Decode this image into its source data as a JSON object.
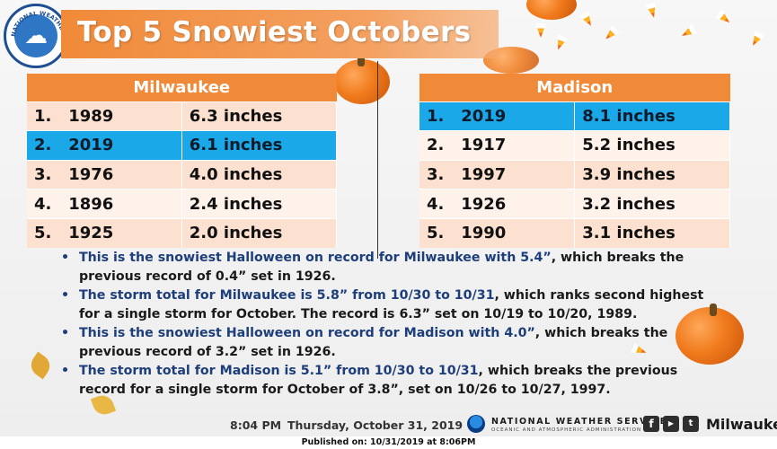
{
  "title": "Top 5 Snowiest Octobers",
  "logo": {
    "icon": "nws-logo-icon",
    "text": "NATIONAL WEATHER SERVICE"
  },
  "milwaukee": {
    "header": "Milwaukee",
    "rows": [
      {
        "rank": "1.",
        "year": "1989",
        "amount": "6.3 inches"
      },
      {
        "rank": "2.",
        "year": "2019",
        "amount": "6.1 inches"
      },
      {
        "rank": "3.",
        "year": "1976",
        "amount": "4.0 inches"
      },
      {
        "rank": "4.",
        "year": "1896",
        "amount": "2.4 inches"
      },
      {
        "rank": "5.",
        "year": "1925",
        "amount": "2.0 inches"
      }
    ]
  },
  "madison": {
    "header": "Madison",
    "rows": [
      {
        "rank": "1.",
        "year": "2019",
        "amount": "8.1 inches"
      },
      {
        "rank": "2.",
        "year": "1917",
        "amount": "5.2 inches"
      },
      {
        "rank": "3.",
        "year": "1997",
        "amount": "3.9 inches"
      },
      {
        "rank": "4.",
        "year": "1926",
        "amount": "3.2 inches"
      },
      {
        "rank": "5.",
        "year": "1990",
        "amount": "3.1 inches"
      }
    ]
  },
  "notes": [
    {
      "highlight": "This is the snowiest Halloween on record for Milwaukee with 5.4”",
      "rest": ", which breaks the previous record of 0.4” set in 1926."
    },
    {
      "highlight": "The storm total for Milwaukee is 5.8” from 10/30 to 10/31",
      "rest": ", which ranks second highest for a single storm for October. The record is 6.3” set on 10/19 to 10/20, 1989."
    },
    {
      "highlight": "This is the snowiest Halloween on record for Madison with 4.0”",
      "rest": ", which breaks the previous record of 3.2” set in 1926."
    },
    {
      "highlight": "The storm total for Madison is 5.1” from 10/30 to 10/31",
      "rest": ", which breaks the previous record for a single storm for October of 3.8”, set on 10/26 to 10/27, 1997."
    }
  ],
  "footer": {
    "time": "8:04 PM",
    "date": "Thursday, October 31, 2019",
    "agency": "NATIONAL WEATHER SERVICE",
    "agency_sub": "OCEANIC AND ATMOSPHERIC ADMINISTRATION",
    "office": "Milwaukee",
    "social_icons": [
      "facebook-icon",
      "youtube-icon",
      "twitter-icon"
    ]
  },
  "published": "Published on: 10/31/2019 at 8:06PM",
  "colors": {
    "accent": "#f08a38",
    "highlight": "#1aa8e8",
    "text_blue": "#1d3e7a"
  }
}
